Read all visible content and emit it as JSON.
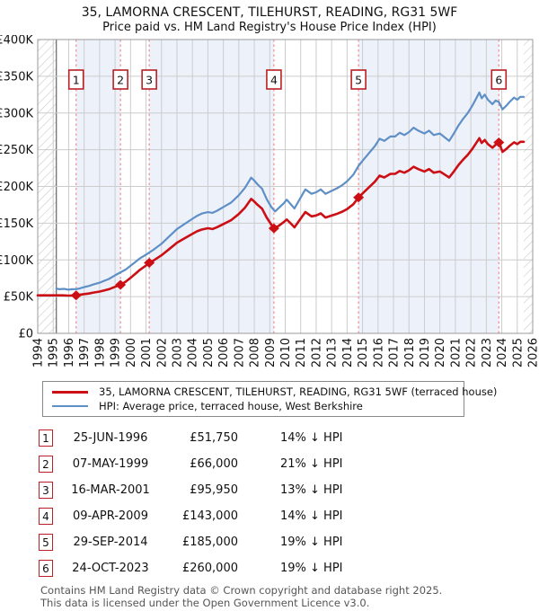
{
  "title": {
    "line1": "35, LAMORNA CRESCENT, TILEHURST, READING, RG31 5WF",
    "line2": "Price paid vs. HM Land Registry's House Price Index (HPI)"
  },
  "chart_data": {
    "type": "line",
    "x_range": [
      1994,
      2026
    ],
    "y_range": [
      0,
      400000
    ],
    "unit": "GBP, values in thousands",
    "grid": true,
    "y_tick_labels": [
      "£0",
      "£50K",
      "£100K",
      "£150K",
      "£200K",
      "£250K",
      "£300K",
      "£350K",
      "£400K"
    ],
    "x_tick_labels": [
      "1994",
      "1995",
      "1996",
      "1997",
      "1998",
      "1999",
      "2000",
      "2001",
      "2002",
      "2003",
      "2004",
      "2005",
      "2006",
      "2007",
      "2008",
      "2009",
      "2010",
      "2011",
      "2012",
      "2013",
      "2014",
      "2015",
      "2016",
      "2017",
      "2018",
      "2019",
      "2020",
      "2021",
      "2022",
      "2023",
      "2024",
      "2025",
      "2026"
    ],
    "hpi_data_start_year": 1995.2,
    "data_end_year": 2025.42,
    "colors": {
      "price_line": "#cc0f14",
      "hpi_line": "#5e8fc7",
      "sale_dashed_line": "#f08c8c",
      "shaded_band": "#edf1fa",
      "grid_line": "#cccccc",
      "plot_border": "#999999",
      "hatch": "#c9c9c9",
      "marker_box_border": "#b92025"
    },
    "series": [
      {
        "name": "35, LAMORNA CRESCENT, TILEHURST, READING, RG31 5WF (terraced house)",
        "color": "#cc0f14",
        "points": [
          [
            1994,
            51.8
          ],
          [
            1995,
            51.8
          ],
          [
            1995.6,
            51.8
          ],
          [
            1996,
            51.4
          ],
          [
            1996.48,
            51.8
          ],
          [
            1997,
            53.4
          ],
          [
            1997.3,
            54.2
          ],
          [
            1997.6,
            55.5
          ],
          [
            1998,
            56.9
          ],
          [
            1998.3,
            58.5
          ],
          [
            1998.6,
            60
          ],
          [
            1999,
            63.4
          ],
          [
            1999.35,
            66
          ],
          [
            1999.7,
            70.4
          ],
          [
            2000,
            75.6
          ],
          [
            2000.3,
            80.9
          ],
          [
            2000.6,
            86.4
          ],
          [
            2001,
            92.3
          ],
          [
            2001.21,
            96
          ],
          [
            2001.5,
            99.3
          ],
          [
            2002,
            106.3
          ],
          [
            2002.5,
            114.8
          ],
          [
            2003,
            123.4
          ],
          [
            2003.5,
            129.5
          ],
          [
            2004,
            135.4
          ],
          [
            2004.3,
            138.9
          ],
          [
            2004.6,
            141.3
          ],
          [
            2005,
            143.1
          ],
          [
            2005.3,
            142
          ],
          [
            2005.6,
            144.6
          ],
          [
            2006,
            148.8
          ],
          [
            2006.5,
            154
          ],
          [
            2007,
            162.4
          ],
          [
            2007.4,
            171.1
          ],
          [
            2007.8,
            183
          ],
          [
            2008,
            179.5
          ],
          [
            2008.2,
            175.2
          ],
          [
            2008.5,
            169.8
          ],
          [
            2008.8,
            157.8
          ],
          [
            2009.1,
            148.1
          ],
          [
            2009.27,
            143
          ],
          [
            2009.6,
            146.7
          ],
          [
            2009.9,
            151.4
          ],
          [
            2010.1,
            155
          ],
          [
            2010.35,
            149.8
          ],
          [
            2010.6,
            144.3
          ],
          [
            2011,
            156.3
          ],
          [
            2011.3,
            165.1
          ],
          [
            2011.7,
            159.3
          ],
          [
            2012,
            160.5
          ],
          [
            2012.3,
            163.3
          ],
          [
            2012.6,
            157.7
          ],
          [
            2013,
            160.4
          ],
          [
            2013.3,
            162.3
          ],
          [
            2013.7,
            165.7
          ],
          [
            2014,
            169.2
          ],
          [
            2014.4,
            175.8
          ],
          [
            2014.74,
            185
          ],
          [
            2015,
            190.4
          ],
          [
            2015.4,
            198.5
          ],
          [
            2015.8,
            206.6
          ],
          [
            2016.1,
            214.7
          ],
          [
            2016.4,
            212.2
          ],
          [
            2016.8,
            217.1
          ],
          [
            2017.1,
            217.1
          ],
          [
            2017.4,
            221.1
          ],
          [
            2017.7,
            218.7
          ],
          [
            2018,
            222
          ],
          [
            2018.3,
            226.8
          ],
          [
            2018.6,
            223.6
          ],
          [
            2019,
            220.3
          ],
          [
            2019.3,
            223.6
          ],
          [
            2019.6,
            218.7
          ],
          [
            2020,
            220.3
          ],
          [
            2020.3,
            216.3
          ],
          [
            2020.6,
            212.2
          ],
          [
            2020.9,
            220.3
          ],
          [
            2021.2,
            229.2
          ],
          [
            2021.5,
            236.5
          ],
          [
            2021.8,
            243
          ],
          [
            2022.1,
            251.1
          ],
          [
            2022.4,
            260.8
          ],
          [
            2022.55,
            265.7
          ],
          [
            2022.7,
            259.2
          ],
          [
            2022.9,
            263.3
          ],
          [
            2023.1,
            257.6
          ],
          [
            2023.4,
            252.7
          ],
          [
            2023.6,
            256.8
          ],
          [
            2023.81,
            260
          ],
          [
            2024.05,
            247.1
          ],
          [
            2024.3,
            251.1
          ],
          [
            2024.5,
            255.2
          ],
          [
            2024.8,
            260
          ],
          [
            2025,
            257.6
          ],
          [
            2025.2,
            260.8
          ],
          [
            2025.42,
            260.8
          ]
        ]
      },
      {
        "name": "HPI: Average price, terraced house, West Berkshire",
        "color": "#5e8fc7",
        "points": [
          [
            1995.2,
            61
          ],
          [
            1995.4,
            60
          ],
          [
            1995.7,
            60.5
          ],
          [
            1996,
            59.5
          ],
          [
            1996.2,
            60
          ],
          [
            1996.48,
            60.2
          ],
          [
            1996.7,
            61
          ],
          [
            1997,
            63
          ],
          [
            1997.3,
            64.5
          ],
          [
            1997.6,
            66.5
          ],
          [
            1998,
            69
          ],
          [
            1998.3,
            71.5
          ],
          [
            1998.6,
            74
          ],
          [
            1999,
            79
          ],
          [
            1999.35,
            83
          ],
          [
            1999.7,
            87
          ],
          [
            2000,
            92
          ],
          [
            2000.3,
            97
          ],
          [
            2000.6,
            102
          ],
          [
            2001,
            107
          ],
          [
            2001.21,
            110
          ],
          [
            2001.5,
            114
          ],
          [
            2002,
            122
          ],
          [
            2002.5,
            132
          ],
          [
            2003,
            142
          ],
          [
            2003.5,
            149
          ],
          [
            2004,
            156
          ],
          [
            2004.3,
            160
          ],
          [
            2004.6,
            163
          ],
          [
            2005,
            165
          ],
          [
            2005.3,
            164
          ],
          [
            2005.6,
            167
          ],
          [
            2006,
            172
          ],
          [
            2006.5,
            178
          ],
          [
            2007,
            188
          ],
          [
            2007.4,
            198
          ],
          [
            2007.8,
            212
          ],
          [
            2008,
            208
          ],
          [
            2008.2,
            203
          ],
          [
            2008.5,
            197
          ],
          [
            2008.8,
            183
          ],
          [
            2009.1,
            172
          ],
          [
            2009.35,
            166
          ],
          [
            2009.6,
            171
          ],
          [
            2009.9,
            177
          ],
          [
            2010.1,
            182
          ],
          [
            2010.35,
            176
          ],
          [
            2010.6,
            170
          ],
          [
            2011,
            185
          ],
          [
            2011.3,
            196
          ],
          [
            2011.7,
            190
          ],
          [
            2012,
            192
          ],
          [
            2012.3,
            196
          ],
          [
            2012.6,
            190
          ],
          [
            2013,
            194
          ],
          [
            2013.3,
            197
          ],
          [
            2013.7,
            202
          ],
          [
            2014,
            207
          ],
          [
            2014.4,
            216
          ],
          [
            2014.74,
            228
          ],
          [
            2015,
            235
          ],
          [
            2015.4,
            245
          ],
          [
            2015.8,
            255
          ],
          [
            2016.1,
            265
          ],
          [
            2016.4,
            262
          ],
          [
            2016.8,
            268
          ],
          [
            2017.1,
            268
          ],
          [
            2017.4,
            273
          ],
          [
            2017.7,
            270
          ],
          [
            2018,
            274
          ],
          [
            2018.3,
            280
          ],
          [
            2018.6,
            276
          ],
          [
            2019,
            272
          ],
          [
            2019.3,
            276
          ],
          [
            2019.6,
            270
          ],
          [
            2020,
            272
          ],
          [
            2020.3,
            267
          ],
          [
            2020.6,
            262
          ],
          [
            2020.9,
            272
          ],
          [
            2021.2,
            283
          ],
          [
            2021.5,
            292
          ],
          [
            2021.8,
            300
          ],
          [
            2022.1,
            310
          ],
          [
            2022.4,
            322
          ],
          [
            2022.55,
            328
          ],
          [
            2022.7,
            320
          ],
          [
            2022.9,
            325
          ],
          [
            2023.1,
            318
          ],
          [
            2023.4,
            312
          ],
          [
            2023.6,
            317
          ],
          [
            2023.81,
            315
          ],
          [
            2024.05,
            305
          ],
          [
            2024.3,
            310
          ],
          [
            2024.5,
            315
          ],
          [
            2024.8,
            321
          ],
          [
            2025,
            318
          ],
          [
            2025.2,
            322
          ],
          [
            2025.42,
            322
          ]
        ]
      }
    ],
    "sales": [
      {
        "num": "1",
        "year": 1996.48,
        "price_k": 51.75,
        "date": "25-JUN-1996",
        "price": "£51,750",
        "hpi_diff": "14% ↓ HPI"
      },
      {
        "num": "2",
        "year": 1999.35,
        "price_k": 66,
        "date": "07-MAY-1999",
        "price": "£66,000",
        "hpi_diff": "21% ↓ HPI"
      },
      {
        "num": "3",
        "year": 2001.21,
        "price_k": 95.95,
        "date": "16-MAR-2001",
        "price": "£95,950",
        "hpi_diff": "13% ↓ HPI"
      },
      {
        "num": "4",
        "year": 2009.27,
        "price_k": 143,
        "date": "09-APR-2009",
        "price": "£143,000",
        "hpi_diff": "14% ↓ HPI"
      },
      {
        "num": "5",
        "year": 2014.74,
        "price_k": 185,
        "date": "29-SEP-2014",
        "price": "£185,000",
        "hpi_diff": "19% ↓ HPI"
      },
      {
        "num": "6",
        "year": 2023.81,
        "price_k": 260,
        "date": "24-OCT-2023",
        "price": "£260,000",
        "hpi_diff": "19% ↓ HPI"
      }
    ],
    "shaded_sale_spans": [
      [
        0,
        1
      ],
      [
        2,
        3
      ],
      [
        4,
        5
      ]
    ],
    "legend_position": "below"
  },
  "footer": {
    "line1": "Contains HM Land Registry data © Crown copyright and database right 2025.",
    "line2": "This data is licensed under the Open Government Licence v3.0."
  }
}
